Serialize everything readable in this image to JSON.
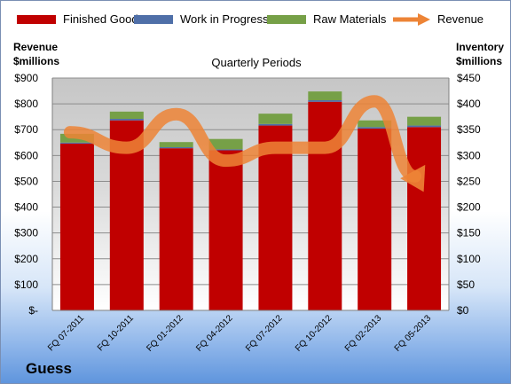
{
  "chart_data": {
    "type": "bar",
    "stacked": true,
    "subtitle": "Quarterly Periods",
    "footer_title": "Guess",
    "left_axis": {
      "title_line1": "Revenue",
      "title_line2": "$millions",
      "range": [
        0,
        900
      ],
      "step": 100,
      "tick_labels": [
        "$-",
        "$100",
        "$200",
        "$300",
        "$400",
        "$500",
        "$600",
        "$700",
        "$800",
        "$900"
      ]
    },
    "right_axis": {
      "title_line1": "Inventory",
      "title_line2": "$millions",
      "range": [
        0,
        450
      ],
      "step": 50,
      "tick_labels": [
        "$0",
        "$50",
        "$100",
        "$150",
        "$200",
        "$250",
        "$300",
        "$350",
        "$400",
        "$450"
      ]
    },
    "categories": [
      "FQ 07-2011",
      "FQ 10-2011",
      "FQ 01-2012",
      "FQ 04-2012",
      "FQ 07-2012",
      "FQ 10-2012",
      "FQ 02-2013",
      "FQ 05-2013"
    ],
    "series": [
      {
        "name": "Finished Goods",
        "color": "#c00000",
        "axis": "right",
        "values": [
          323,
          368,
          314,
          310,
          358,
          404,
          352,
          355
        ]
      },
      {
        "name": "Work in Progress",
        "color": "#4f6fa8",
        "axis": "right",
        "values": [
          2,
          3,
          2,
          2,
          3,
          3,
          3,
          3
        ]
      },
      {
        "name": "Raw Materials",
        "color": "#76a047",
        "axis": "right",
        "values": [
          17,
          14,
          10,
          20,
          20,
          17,
          13,
          17
        ]
      },
      {
        "name": "Revenue",
        "color": "#ed8436",
        "axis": "left",
        "kind": "trend",
        "values": [
          690,
          630,
          760,
          580,
          630,
          630,
          810,
          540
        ]
      }
    ],
    "legend_position": "top",
    "grid": true
  }
}
